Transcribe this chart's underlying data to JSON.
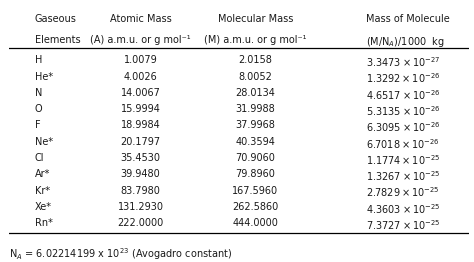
{
  "col_headers_line1": [
    "Gaseous",
    "Atomic Mass",
    "Molecular Mass",
    "Mass of Molecule"
  ],
  "col_headers_line2": [
    "Elements",
    "(A) a.m.u. or g mol⁻¹",
    "(M) a.m.u. or g mol⁻¹",
    "(M/N$_A$)/1000  kg"
  ],
  "rows": [
    [
      "H",
      "1.0079",
      "2.0158",
      "3.3473",
      "-27"
    ],
    [
      "He*",
      "4.0026",
      "8.0052",
      "1.3292",
      "-26"
    ],
    [
      "N",
      "14.0067",
      "28.0134",
      "4.6517",
      "-26"
    ],
    [
      "O",
      "15.9994",
      "31.9988",
      "5.3135",
      "-26"
    ],
    [
      "F",
      "18.9984",
      "37.9968",
      "6.3095",
      "-26"
    ],
    [
      "Ne*",
      "20.1797",
      "40.3594",
      "6.7018",
      "-26"
    ],
    [
      "Cl",
      "35.4530",
      "70.9060",
      "1.1774",
      "-25"
    ],
    [
      "Ar*",
      "39.9480",
      "79.8960",
      "1.3267",
      "-25"
    ],
    [
      "Kr*",
      "83.7980",
      "167.5960",
      "2.7829",
      "-25"
    ],
    [
      "Xe*",
      "131.2930",
      "262.5860",
      "4.3603",
      "-25"
    ],
    [
      "Rn*",
      "222.0000",
      "444.0000",
      "7.3727",
      "-25"
    ]
  ],
  "bg_color": "#ffffff",
  "text_color": "#1a1a1a",
  "font_size": 7.0,
  "header_font_size": 7.0
}
